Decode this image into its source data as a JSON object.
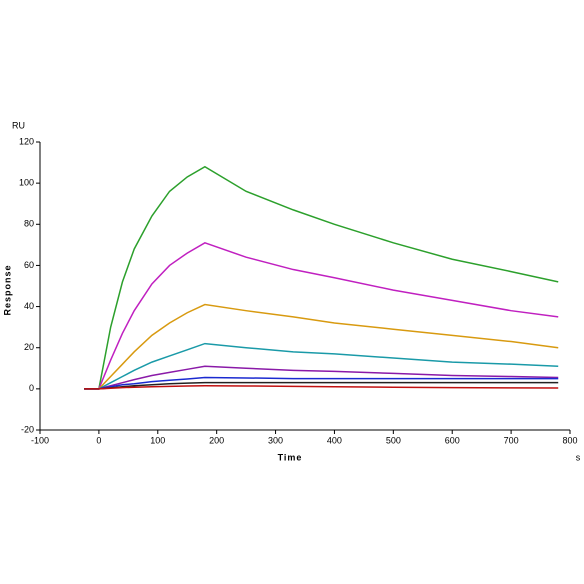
{
  "chart_data": {
    "type": "line",
    "y_label": "RU",
    "y_title": "Response",
    "x_title": "Time",
    "x_unit": "s",
    "x": [
      -25,
      0,
      20,
      40,
      60,
      90,
      120,
      150,
      180,
      250,
      330,
      400,
      500,
      600,
      700,
      780
    ],
    "series": [
      {
        "color": "#2ca02c",
        "values": [
          0,
          0,
          30,
          52,
          68,
          84,
          96,
          103,
          108,
          96,
          87,
          80,
          71,
          63,
          57,
          52
        ]
      },
      {
        "color": "#c020c0",
        "values": [
          0,
          0,
          14,
          27,
          38,
          51,
          60,
          66,
          71,
          64,
          58,
          54,
          48,
          43,
          38,
          35
        ]
      },
      {
        "color": "#d89a10",
        "values": [
          0,
          0,
          6,
          12,
          18,
          26,
          32,
          37,
          41,
          38,
          35,
          32,
          29,
          26,
          23,
          20
        ]
      },
      {
        "color": "#1a9aa8",
        "values": [
          0,
          0,
          3,
          6,
          9,
          13,
          16,
          19,
          22,
          20,
          18,
          17,
          15,
          13,
          12,
          11
        ]
      },
      {
        "color": "#8a1aa8",
        "values": [
          0,
          0,
          1.5,
          3,
          4.5,
          6.5,
          8,
          9.5,
          11,
          10,
          9,
          8.5,
          7.5,
          6.5,
          6,
          5.5
        ]
      },
      {
        "color": "#1a2ad0",
        "values": [
          0,
          0,
          1,
          2,
          2.5,
          3.5,
          4.2,
          4.8,
          5.5,
          5.3,
          5,
          5,
          5,
          5,
          5,
          5
        ]
      },
      {
        "color": "#222222",
        "values": [
          0,
          0,
          0.5,
          1,
          1.5,
          2,
          2.5,
          2.8,
          3,
          3,
          3,
          3,
          3,
          3,
          3,
          3
        ]
      },
      {
        "color": "#c01010",
        "values": [
          0,
          0,
          0.3,
          0.6,
          0.8,
          1,
          1.2,
          1.4,
          1.5,
          1.4,
          1.2,
          1,
          0.8,
          0.6,
          0.5,
          0.4
        ]
      }
    ],
    "xlim": [
      -100,
      800
    ],
    "xticks": [
      -100,
      0,
      100,
      200,
      300,
      400,
      500,
      600,
      700,
      800
    ],
    "ylim": [
      -20,
      120
    ],
    "yticks": [
      -20,
      0,
      20,
      40,
      60,
      80,
      100,
      120
    ]
  }
}
